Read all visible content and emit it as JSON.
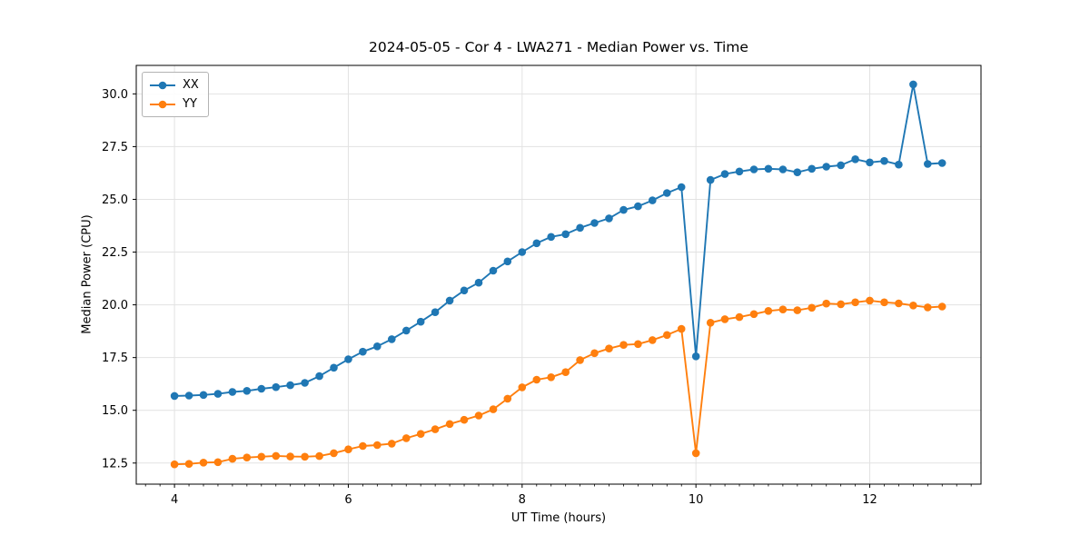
{
  "figure": {
    "background": "#ffffff"
  },
  "chart_data": {
    "type": "line",
    "title": "2024-05-05 - Cor 4 - LWA271 - Median Power vs. Time",
    "xlabel": "UT Time (hours)",
    "ylabel": "Median Power (CPU)",
    "xlim": [
      3.56,
      13.28
    ],
    "ylim": [
      11.5,
      31.35
    ],
    "x_ticks": [
      4,
      6,
      8,
      10,
      12
    ],
    "x_tick_labels": [
      "4",
      "6",
      "8",
      "10",
      "12"
    ],
    "y_ticks": [
      12.5,
      15.0,
      17.5,
      20.0,
      22.5,
      25.0,
      27.5,
      30.0
    ],
    "y_tick_labels": [
      "12.5",
      "15.0",
      "17.5",
      "20.0",
      "22.5",
      "25.0",
      "27.5",
      "30.0"
    ],
    "x_minor_tick_step": 0.16667,
    "grid": true,
    "grid_color": "#e2e2e2",
    "legend_position": "upper-left",
    "x": [
      4.0,
      4.167,
      4.333,
      4.5,
      4.667,
      4.833,
      5.0,
      5.167,
      5.333,
      5.5,
      5.667,
      5.833,
      6.0,
      6.167,
      6.333,
      6.5,
      6.667,
      6.833,
      7.0,
      7.167,
      7.333,
      7.5,
      7.667,
      7.833,
      8.0,
      8.167,
      8.333,
      8.5,
      8.667,
      8.833,
      9.0,
      9.167,
      9.333,
      9.5,
      9.667,
      9.833,
      10.0,
      10.167,
      10.333,
      10.5,
      10.667,
      10.833,
      11.0,
      11.167,
      11.333,
      11.5,
      11.667,
      11.833,
      12.0,
      12.167,
      12.333,
      12.5,
      12.667,
      12.833
    ],
    "series": [
      {
        "name": "XX",
        "color": "#1f77b4",
        "marker": "circle",
        "values": [
          15.68,
          15.7,
          15.73,
          15.78,
          15.87,
          15.92,
          16.02,
          16.1,
          16.19,
          16.3,
          16.62,
          17.02,
          17.42,
          17.78,
          18.03,
          18.37,
          18.78,
          19.2,
          19.65,
          20.2,
          20.68,
          21.05,
          21.62,
          22.06,
          22.5,
          22.92,
          23.22,
          23.35,
          23.65,
          23.88,
          24.1,
          24.5,
          24.67,
          24.95,
          25.3,
          25.58,
          17.56,
          25.92,
          26.2,
          26.32,
          26.42,
          26.45,
          26.42,
          26.28,
          26.45,
          26.55,
          26.62,
          26.9,
          26.75,
          26.82,
          26.65,
          30.45,
          26.68,
          26.72
        ]
      },
      {
        "name": "YY",
        "color": "#ff7f0e",
        "marker": "circle",
        "values": [
          12.44,
          12.46,
          12.52,
          12.54,
          12.7,
          12.76,
          12.8,
          12.84,
          12.81,
          12.8,
          12.83,
          12.97,
          13.15,
          13.31,
          13.35,
          13.42,
          13.68,
          13.88,
          14.1,
          14.35,
          14.55,
          14.75,
          15.05,
          15.55,
          16.09,
          16.45,
          16.57,
          16.81,
          17.38,
          17.71,
          17.93,
          18.1,
          18.14,
          18.33,
          18.57,
          18.86,
          12.97,
          19.15,
          19.32,
          19.42,
          19.56,
          19.71,
          19.78,
          19.74,
          19.86,
          20.06,
          20.03,
          20.12,
          20.2,
          20.12,
          20.07,
          19.97,
          19.88,
          19.92
        ]
      }
    ]
  }
}
